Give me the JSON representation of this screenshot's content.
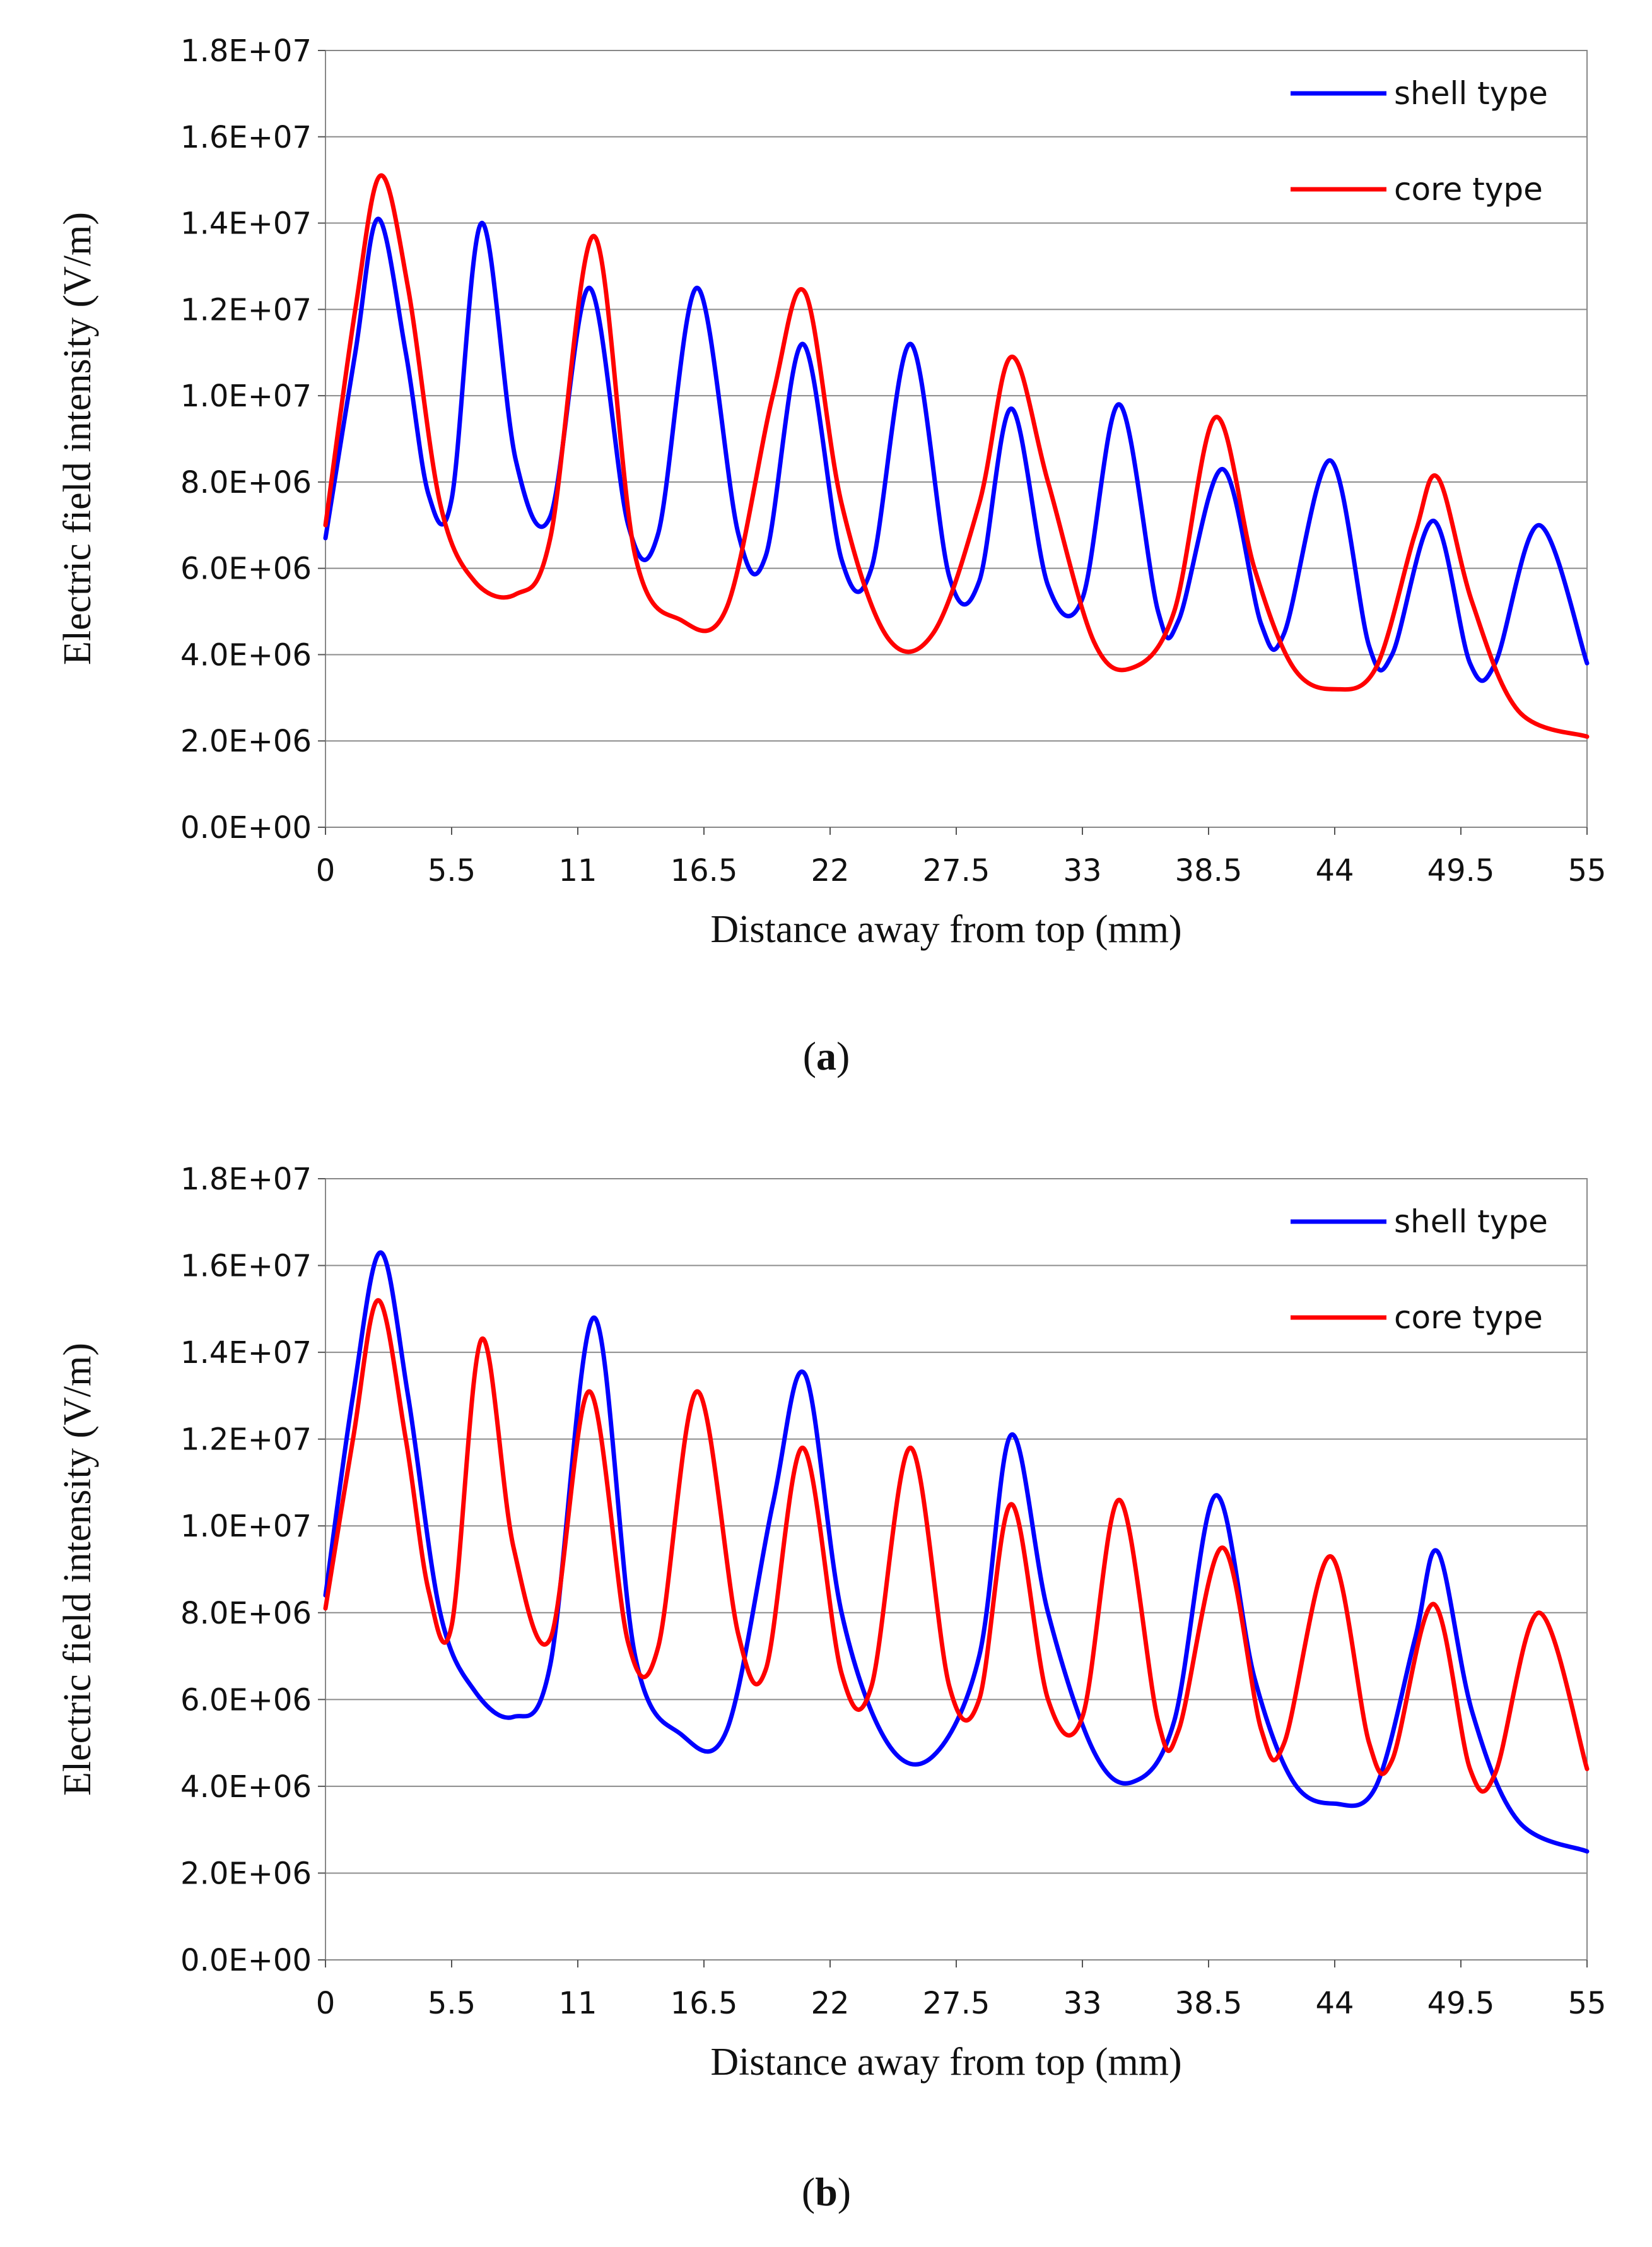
{
  "chart_data": [
    {
      "type": "line",
      "panel": "a",
      "caption_open": "(",
      "caption_letter": "a",
      "caption_close": ")",
      "title": "",
      "xlabel": "Distance away from top (mm)",
      "ylabel": "Electric field intensity (V/m)",
      "xlim": [
        0,
        55
      ],
      "ylim": [
        0,
        18000000
      ],
      "grid": true,
      "legend_position": "top-right",
      "x_ticks": [
        "0",
        "5.5",
        "11",
        "16.5",
        "22",
        "27.5",
        "33",
        "38.5",
        "44",
        "49.5",
        "55"
      ],
      "y_ticks": [
        "0.0E+00",
        "2.0E+06",
        "4.0E+06",
        "6.0E+06",
        "8.0E+06",
        "1.0E+07",
        "1.2E+07",
        "1.4E+07",
        "1.6E+07",
        "1.8E+07"
      ],
      "series": [
        {
          "name": "shell type",
          "color": "#0000ff",
          "x": [
            0,
            1.3,
            2.3,
            3.5,
            4.5,
            5.5,
            6.8,
            8.3,
            9.8,
            11.5,
            13.2,
            14.5,
            16.2,
            18.0,
            19.2,
            20.8,
            22.5,
            23.8,
            25.5,
            27.2,
            28.5,
            29.9,
            31.5,
            33.0,
            34.6,
            36.3,
            37.2,
            39.1,
            40.8,
            41.8,
            43.8,
            45.5,
            46.5,
            48.3,
            49.9,
            51.0,
            52.9,
            55.0
          ],
          "y": [
            6700000,
            11000000,
            14100000,
            11000000,
            7700000,
            7600000,
            14000000,
            8500000,
            7200000,
            12500000,
            7000000,
            6800000,
            12500000,
            6800000,
            6300000,
            11200000,
            6200000,
            6000000,
            11200000,
            5800000,
            5700000,
            9700000,
            5600000,
            5300000,
            9800000,
            5000000,
            4800000,
            8300000,
            4700000,
            4500000,
            8500000,
            4200000,
            4000000,
            7100000,
            3800000,
            3800000,
            7000000,
            3800000
          ]
        },
        {
          "name": "core type",
          "color": "#ff0000",
          "x": [
            0,
            1.3,
            2.4,
            3.6,
            5.0,
            6.5,
            8.3,
            9.8,
            11.7,
            13.5,
            15.5,
            17.5,
            19.5,
            20.9,
            22.5,
            24.5,
            26.5,
            28.5,
            29.9,
            31.5,
            33.5,
            35.2,
            37.0,
            38.8,
            40.5,
            42.2,
            44.0,
            45.8,
            47.5,
            48.5,
            50.0,
            52.0,
            55.0
          ],
          "y": [
            7000000,
            12000000,
            15100000,
            12500000,
            7500000,
            5700000,
            5400000,
            6700000,
            13700000,
            6300000,
            4800000,
            5100000,
            10000000,
            12400000,
            7500000,
            4400000,
            4500000,
            7500000,
            10900000,
            8000000,
            4300000,
            3700000,
            5000000,
            9500000,
            6000000,
            3700000,
            3200000,
            3700000,
            6800000,
            8100000,
            5200000,
            2700000,
            2100000
          ]
        }
      ]
    },
    {
      "type": "line",
      "panel": "b",
      "caption_open": "(",
      "caption_letter": "b",
      "caption_close": ")",
      "title": "",
      "xlabel": "Distance away from top (mm)",
      "ylabel": "Electric field intensity (V/m)",
      "xlim": [
        0,
        55
      ],
      "ylim": [
        0,
        18000000
      ],
      "grid": true,
      "legend_position": "top-right",
      "x_ticks": [
        "0",
        "5.5",
        "11",
        "16.5",
        "22",
        "27.5",
        "33",
        "38.5",
        "44",
        "49.5",
        "55"
      ],
      "y_ticks": [
        "0.0E+00",
        "2.0E+06",
        "4.0E+06",
        "6.0E+06",
        "8.0E+06",
        "1.0E+07",
        "1.2E+07",
        "1.4E+07",
        "1.6E+07",
        "1.8E+07"
      ],
      "series": [
        {
          "name": "shell type",
          "color": "#0000ff",
          "x": [
            0,
            1.2,
            2.4,
            3.6,
            5.0,
            6.5,
            8.2,
            9.8,
            11.7,
            13.5,
            15.5,
            17.5,
            19.5,
            20.9,
            22.5,
            24.5,
            26.5,
            28.5,
            29.9,
            31.5,
            33.5,
            35.2,
            37.0,
            38.8,
            40.5,
            42.2,
            44.0,
            45.8,
            47.5,
            48.5,
            50.0,
            52.0,
            55.0
          ],
          "y": [
            8400000,
            13000000,
            16300000,
            13000000,
            8000000,
            6200000,
            5600000,
            6800000,
            14800000,
            7000000,
            5200000,
            5300000,
            10500000,
            13500000,
            8000000,
            5000000,
            4700000,
            7000000,
            12100000,
            8000000,
            4800000,
            4100000,
            5500000,
            10700000,
            6500000,
            4100000,
            3600000,
            4000000,
            7400000,
            9400000,
            5700000,
            3200000,
            2500000
          ]
        },
        {
          "name": "core type",
          "color": "#ff0000",
          "x": [
            0,
            1.2,
            2.3,
            3.5,
            4.5,
            5.5,
            6.8,
            8.2,
            9.8,
            11.5,
            13.2,
            14.5,
            16.2,
            18.0,
            19.2,
            20.8,
            22.5,
            23.8,
            25.5,
            27.2,
            28.5,
            29.9,
            31.5,
            33.0,
            34.6,
            36.3,
            37.2,
            39.1,
            40.8,
            41.8,
            43.8,
            45.5,
            46.5,
            48.3,
            49.9,
            51.0,
            52.9,
            55.0
          ],
          "y": [
            8100000,
            12000000,
            15200000,
            12000000,
            8500000,
            7700000,
            14300000,
            9500000,
            7400000,
            13100000,
            7300000,
            7200000,
            13100000,
            7500000,
            6700000,
            11800000,
            6600000,
            6300000,
            11800000,
            6300000,
            6000000,
            10500000,
            6000000,
            5600000,
            10600000,
            5500000,
            5300000,
            9500000,
            5300000,
            5000000,
            9300000,
            5000000,
            4600000,
            8200000,
            4400000,
            4300000,
            8000000,
            4400000
          ]
        }
      ]
    }
  ]
}
